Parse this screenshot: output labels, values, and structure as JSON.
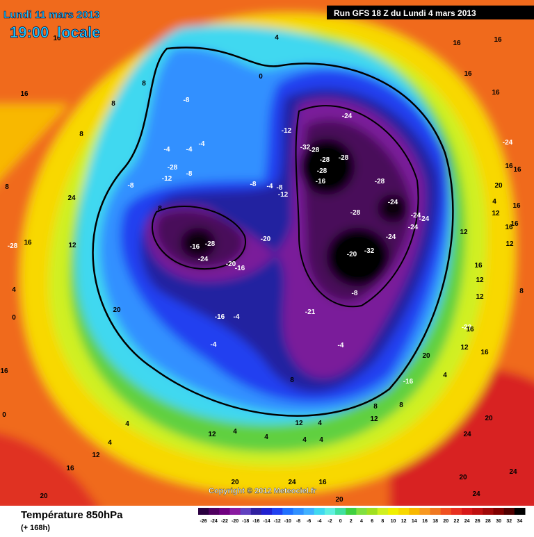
{
  "header": {
    "date": "Lundi 11 mars 2013",
    "time": "19:00",
    "time_note": "locale",
    "run": "Run GFS 18 Z du Lundi 4 mars 2013"
  },
  "copyright": "Copyright © 2012 Meteociel.fr",
  "footer": {
    "title": "Température 850hPa",
    "subtitle": "(+ 168h)"
  },
  "legend": {
    "ticks": [
      -26,
      -24,
      -22,
      -20,
      -18,
      -16,
      -14,
      -12,
      -10,
      -8,
      -6,
      -4,
      -2,
      0,
      2,
      4,
      6,
      8,
      10,
      12,
      14,
      16,
      18,
      20,
      22,
      24,
      26,
      28,
      30,
      32,
      34
    ],
    "colors": [
      "#2a0040",
      "#500060",
      "#700080",
      "#8a1aa0",
      "#6040c0",
      "#3020a0",
      "#2020d0",
      "#2040f0",
      "#2070ff",
      "#3090ff",
      "#40b0ff",
      "#40d8f0",
      "#60f0e0",
      "#40e0a0",
      "#40d040",
      "#80e040",
      "#a0e020",
      "#d0f020",
      "#f0f000",
      "#f8d800",
      "#f8b800",
      "#f89820",
      "#f07820",
      "#f05020",
      "#e83020",
      "#d81818",
      "#c01010",
      "#a00808",
      "#800000",
      "#500000",
      "#000000"
    ]
  },
  "contour_labels": [
    16,
    4,
    16,
    16,
    8,
    16,
    8,
    -8,
    0,
    -24,
    -12,
    16,
    16,
    8,
    -4,
    -4,
    -4,
    -32,
    -28,
    -28,
    -28,
    -28,
    -28,
    -8,
    -12,
    -8,
    -8,
    -4,
    -8,
    -12,
    -16,
    -28,
    -24,
    16,
    16,
    20,
    8,
    24,
    8,
    -24,
    -28,
    -24,
    -24,
    -24,
    -24,
    -20,
    -16,
    -28,
    -24,
    -20,
    -16,
    -20,
    -32,
    -28,
    16,
    12,
    4,
    16,
    12,
    16,
    16,
    12,
    12,
    16,
    12,
    12,
    8,
    20,
    -8,
    -21,
    -16,
    -4,
    -4,
    -4,
    -20,
    16,
    12,
    16,
    20,
    8,
    -16,
    4,
    8,
    12,
    8,
    12,
    4,
    4,
    4,
    4,
    12,
    4,
    4,
    4,
    12,
    16,
    20,
    20,
    16,
    20,
    24,
    20,
    24,
    24,
    20,
    24,
    16,
    0,
    0,
    4,
    12
  ]
}
